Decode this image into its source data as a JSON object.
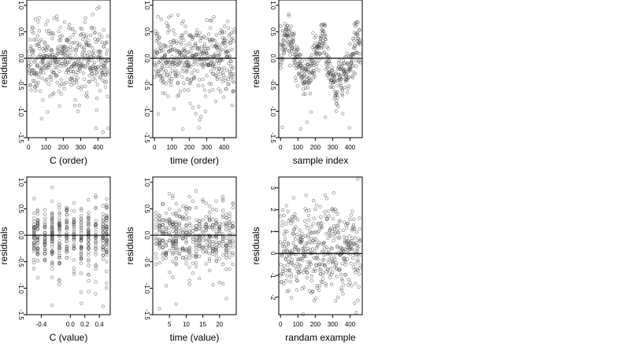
{
  "chart_data": [
    {
      "type": "scatter",
      "id": "p1",
      "xlabel": "C (order)",
      "ylabel": "residuals",
      "xlim": [
        -10,
        470
      ],
      "ylim": [
        -1.5,
        1.1
      ],
      "xticks": [
        0,
        100,
        200,
        300,
        400
      ],
      "yticks": [
        -1.5,
        -1.0,
        -0.5,
        0.0,
        0.5,
        1.0
      ],
      "ytick_labels": [
        "-1.5",
        "-1.0",
        "-0.5",
        "0.0",
        "0.5",
        "1.0"
      ],
      "hline": 0,
      "grid": false,
      "pattern": "index",
      "n": 460,
      "seed": 11,
      "description_values": "residuals spread roughly between -0.9 and 0.9, a few outliers down to -1.4"
    },
    {
      "type": "scatter",
      "id": "p2",
      "xlabel": "time (order)",
      "ylabel": "residuals",
      "xlim": [
        -10,
        470
      ],
      "ylim": [
        -1.5,
        1.1
      ],
      "xticks": [
        0,
        100,
        200,
        300,
        400
      ],
      "yticks": [
        -1.5,
        -1.0,
        -0.5,
        0.0,
        0.5,
        1.0
      ],
      "ytick_labels": [
        "-1.5",
        "-1.0",
        "-0.5",
        "0.0",
        "0.5",
        "1.0"
      ],
      "hline": 0,
      "grid": false,
      "pattern": "index",
      "n": 460,
      "seed": 23
    },
    {
      "type": "scatter",
      "id": "p3",
      "xlabel": "sample index",
      "ylabel": "residuals",
      "xlim": [
        -10,
        470
      ],
      "ylim": [
        -1.5,
        1.1
      ],
      "xticks": [
        0,
        100,
        200,
        300,
        400
      ],
      "yticks": [
        -1.5,
        -1.0,
        -0.5,
        0.0,
        0.5,
        1.0
      ],
      "ytick_labels": [
        "-1.5",
        "-1.0",
        "-0.5",
        "0.0",
        "0.5",
        "1.0"
      ],
      "hline": 0,
      "grid": false,
      "pattern": "wave",
      "n": 460,
      "seed": 37
    },
    {
      "type": "scatter",
      "id": "p4",
      "xlabel": "C (value)",
      "ylabel": "residuals",
      "xlim": [
        -0.6,
        0.55
      ],
      "ylim": [
        -1.5,
        1.1
      ],
      "xticks": [
        -0.4,
        0.0,
        0.2,
        0.4
      ],
      "xtick_labels": [
        "-0.4",
        "0.0",
        "0.2",
        "0.4"
      ],
      "yticks": [
        -1.5,
        -1.0,
        -0.5,
        0.0,
        0.5,
        1.0
      ],
      "ytick_labels": [
        "-1.5",
        "-1.0",
        "-0.5",
        "0.0",
        "0.5",
        "1.0"
      ],
      "hline": 0,
      "grid": false,
      "pattern": "columns",
      "columns": [
        -0.5,
        -0.45,
        -0.35,
        -0.25,
        -0.15,
        -0.05,
        0.05,
        0.15,
        0.25,
        0.35,
        0.45,
        0.5
      ],
      "n": 460,
      "seed": 41
    },
    {
      "type": "scatter",
      "id": "p5",
      "xlabel": "time (value)",
      "ylabel": "residuals",
      "xlim": [
        0,
        25
      ],
      "ylim": [
        -1.5,
        1.1
      ],
      "xticks": [
        5,
        10,
        15,
        20
      ],
      "xtick_labels": [
        "5",
        "10",
        "15",
        "20"
      ],
      "yticks": [
        -1.5,
        -1.0,
        -0.5,
        0.0,
        0.5,
        1.0
      ],
      "ytick_labels": [
        "-1.5",
        "-1.0",
        "-0.5",
        "0.0",
        "0.5",
        "1.0"
      ],
      "hline": 0,
      "grid": false,
      "pattern": "columns",
      "columns": [
        1,
        2,
        3,
        4,
        5,
        6,
        7,
        8,
        9,
        10,
        11,
        12,
        13,
        14,
        15,
        16,
        17,
        18,
        19,
        20,
        21,
        22,
        23,
        24
      ],
      "n": 460,
      "seed": 53
    },
    {
      "type": "scatter",
      "id": "p6",
      "xlabel": "randam example",
      "ylabel": "residuals",
      "xlim": [
        -10,
        470
      ],
      "ylim": [
        -2.8,
        3.5
      ],
      "xticks": [
        0,
        100,
        200,
        300,
        400
      ],
      "yticks": [
        -2,
        -1,
        0,
        1,
        2,
        3
      ],
      "ytick_labels": [
        "-2",
        "-1",
        "0",
        "1",
        "2",
        "3"
      ],
      "hline": 0,
      "grid": false,
      "pattern": "normal",
      "n": 460,
      "seed": 67
    }
  ]
}
